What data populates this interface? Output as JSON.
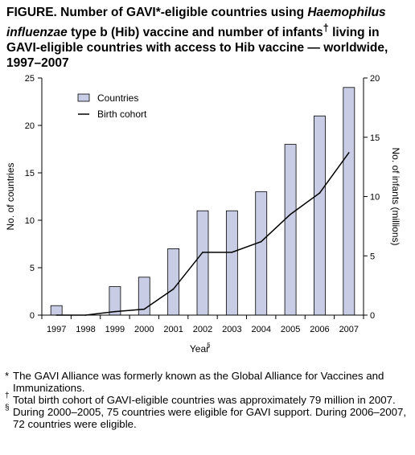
{
  "title": {
    "prefix": "FIGURE.",
    "part1": " Number of GAVI*-eligible countries using ",
    "italic": "Haemophilus influenzae",
    "part2": " type b (Hib) vaccine and number of infants",
    "dagger": "†",
    "part3": " living in GAVI-eligible countries with access to Hib vaccine — worldwide, 1997–2007"
  },
  "chart_data": {
    "type": "bar",
    "categories": [
      "1997",
      "1998",
      "1999",
      "2000",
      "2001",
      "2002",
      "2003",
      "2004",
      "2005",
      "2006",
      "2007"
    ],
    "series": [
      {
        "name": "Countries",
        "type": "bar",
        "axis": "left",
        "values": [
          1,
          0,
          3,
          4,
          7,
          11,
          11,
          13,
          18,
          21,
          24
        ]
      },
      {
        "name": "Birth cohort",
        "type": "line",
        "axis": "right",
        "values": [
          0,
          0,
          0.3,
          0.5,
          2.2,
          5.3,
          5.3,
          6.2,
          8.5,
          10.3,
          13.7
        ]
      }
    ],
    "xlabel": "Year",
    "xlabel_mark": "§",
    "ylabel_left": "No. of countries",
    "ylabel_right": "No. of infants (millions)",
    "ylim_left": [
      0,
      25
    ],
    "ylim_right": [
      0,
      20
    ],
    "yticks_left": [
      0,
      5,
      10,
      15,
      20,
      25
    ],
    "yticks_right": [
      0,
      5,
      10,
      15,
      20
    ],
    "bar_color": "#c8cce4",
    "line_color": "#000000",
    "legend_position": "top-left",
    "grid": false
  },
  "footnotes": [
    {
      "mark": "*",
      "text": "The GAVI Alliance was formerly known as the Global Alliance for Vaccines and Immunizations."
    },
    {
      "mark": "†",
      "text": "Total birth cohort of GAVI-eligible countries was approximately 79 million in 2007."
    },
    {
      "mark": "§",
      "text": "During 2000–2005, 75 countries were eligible for GAVI support. During 2006–2007, 72 countries were eligible."
    }
  ]
}
